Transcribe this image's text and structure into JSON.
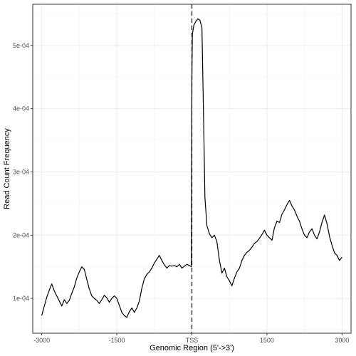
{
  "chart_data": {
    "type": "line",
    "title": "",
    "xlabel": "Genomic Region (5'->3')",
    "ylabel": "Read Count Frequency",
    "xlim": [
      -3180,
      3180
    ],
    "ylim": [
      4.5e-05,
      0.000565
    ],
    "x_ticks": [
      {
        "value": -3000,
        "label": "-3000"
      },
      {
        "value": -1500,
        "label": "-1500"
      },
      {
        "value": 0,
        "label": "TSS"
      },
      {
        "value": 1500,
        "label": "1500"
      },
      {
        "value": 3000,
        "label": "3000"
      }
    ],
    "y_ticks": [
      {
        "value": 0.0001,
        "label": "1e-04"
      },
      {
        "value": 0.0002,
        "label": "2e-04"
      },
      {
        "value": 0.0003,
        "label": "3e-04"
      },
      {
        "value": 0.0004,
        "label": "4e-04"
      },
      {
        "value": 0.0005,
        "label": "5e-04"
      }
    ],
    "grid": true,
    "legend": "none",
    "vline": {
      "x": 0,
      "style": "dashed"
    },
    "line_color": "#000000",
    "series": [
      {
        "x": [
          -3000,
          -2950,
          -2900,
          -2850,
          -2800,
          -2750,
          -2700,
          -2650,
          -2600,
          -2550,
          -2500,
          -2450,
          -2400,
          -2350,
          -2300,
          -2250,
          -2200,
          -2150,
          -2100,
          -2050,
          -2000,
          -1950,
          -1900,
          -1850,
          -1800,
          -1750,
          -1700,
          -1650,
          -1600,
          -1550,
          -1500,
          -1450,
          -1400,
          -1350,
          -1300,
          -1250,
          -1200,
          -1150,
          -1100,
          -1050,
          -1000,
          -950,
          -900,
          -850,
          -800,
          -750,
          -700,
          -650,
          -600,
          -550,
          -500,
          -450,
          -400,
          -350,
          -300,
          -250,
          -200,
          -150,
          -100,
          -50,
          -10,
          0,
          10,
          40,
          80,
          120,
          160,
          200,
          230,
          260,
          300,
          350,
          400,
          450,
          500,
          550,
          600,
          650,
          700,
          750,
          800,
          850,
          900,
          950,
          1000,
          1050,
          1100,
          1150,
          1200,
          1250,
          1300,
          1350,
          1400,
          1450,
          1500,
          1550,
          1600,
          1650,
          1700,
          1750,
          1800,
          1850,
          1900,
          1950,
          2000,
          2050,
          2100,
          2150,
          2200,
          2250,
          2300,
          2350,
          2400,
          2450,
          2500,
          2550,
          2600,
          2650,
          2700,
          2750,
          2800,
          2850,
          2900,
          2950,
          3000
        ],
        "y": [
          7.3e-05,
          8.8e-05,
          0.000102,
          0.000113,
          0.000123,
          0.000112,
          0.000104,
          9.6e-05,
          8.8e-05,
          9.8e-05,
          9.2e-05,
          9.7e-05,
          0.000108,
          0.000118,
          0.000132,
          0.000142,
          0.00015,
          0.000146,
          0.00013,
          0.000115,
          0.000104,
          0.0001,
          9.7e-05,
          9.2e-05,
          9.8e-05,
          0.000105,
          0.000101,
          9.4e-05,
          0.0001,
          0.000104,
          0.0001,
          8.9e-05,
          7.8e-05,
          7.3e-05,
          7e-05,
          7.9e-05,
          8.5e-05,
          7.8e-05,
          8.5e-05,
          9.6e-05,
          0.000116,
          0.000131,
          0.000138,
          0.000142,
          0.000148,
          0.000156,
          0.000162,
          0.000168,
          0.00016,
          0.000153,
          0.000148,
          0.000152,
          0.000151,
          0.000152,
          0.00015,
          0.000154,
          0.000148,
          0.000151,
          0.000154,
          0.000152,
          0.00015,
          0.00045,
          0.000518,
          0.000532,
          0.000538,
          0.000542,
          0.00054,
          0.000528,
          0.0004,
          0.00026,
          0.000215,
          0.000202,
          0.000196,
          0.0002,
          0.00019,
          0.00016,
          0.00014,
          0.000148,
          0.000134,
          0.000128,
          0.00012,
          0.000132,
          0.000142,
          0.000148,
          0.00016,
          0.000168,
          0.000173,
          0.000176,
          0.000181,
          0.000187,
          0.00019,
          0.000195,
          0.000201,
          0.000208,
          0.0002,
          0.000196,
          0.000192,
          0.000212,
          0.000222,
          0.00022,
          0.000233,
          0.00024,
          0.000248,
          0.000255,
          0.000246,
          0.00024,
          0.00023,
          0.000222,
          0.00021,
          0.0002,
          0.000196,
          0.000205,
          0.00021,
          0.0002,
          0.000194,
          0.000205,
          0.00022,
          0.000232,
          0.000218,
          0.000198,
          0.000184,
          0.000172,
          0.000168,
          0.00016,
          0.000165
        ]
      }
    ]
  }
}
